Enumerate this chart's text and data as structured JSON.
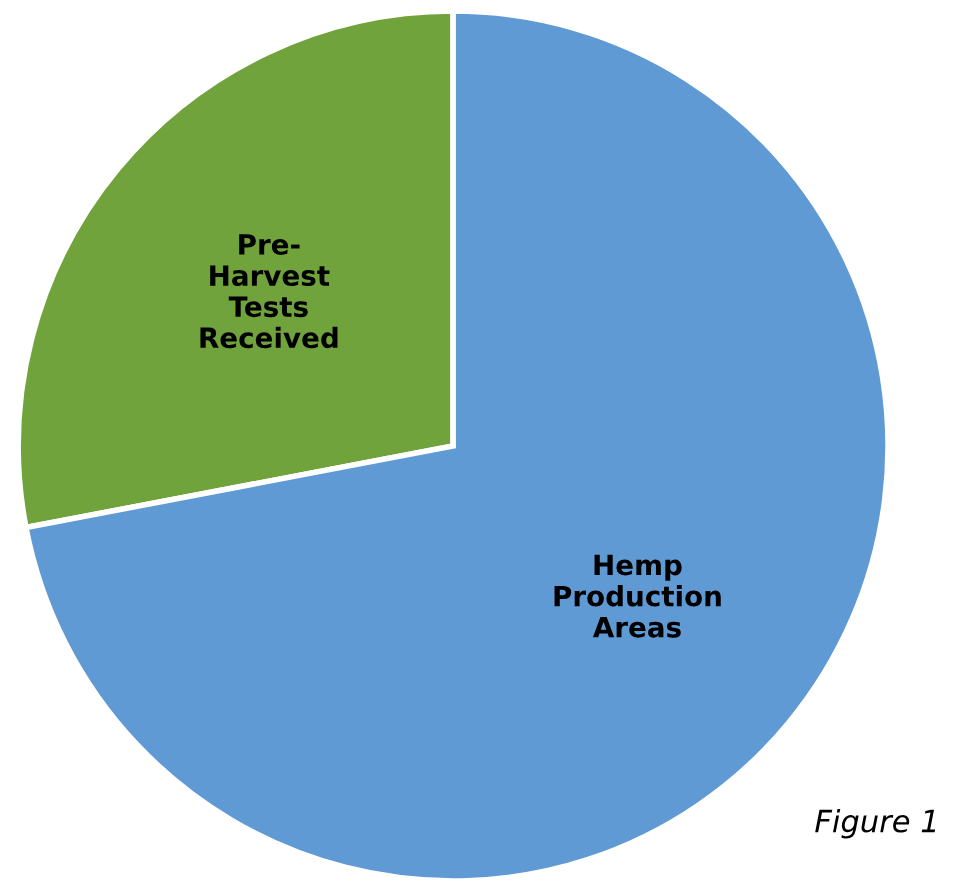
{
  "chart_data": {
    "type": "pie",
    "categories": [
      "Pre-\nHarvest\nTests\nReceived",
      "Hemp\nProduction\nAreas"
    ],
    "values": [
      28,
      72
    ],
    "colors": [
      "#70a33c",
      "#5f9ad5"
    ],
    "legend": false,
    "annotations": [
      "Figure 1"
    ]
  }
}
